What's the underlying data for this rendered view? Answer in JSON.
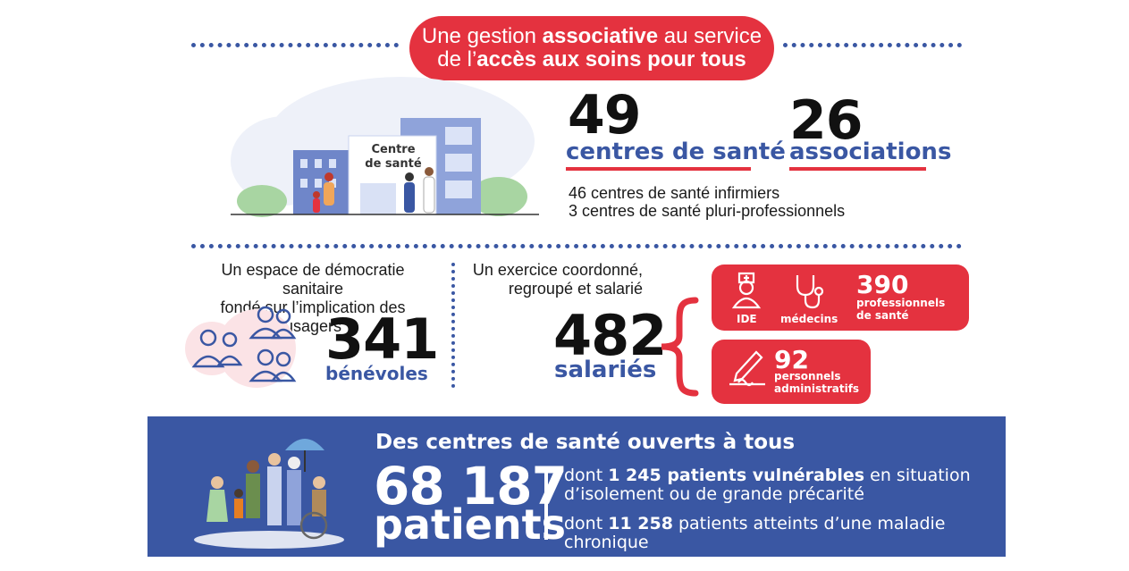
{
  "title": {
    "part1": "Une gestion ",
    "part1_bold": "associative",
    "part2": " au service",
    "part3": "de l’",
    "part3_bold": "accès aux soins pour tous"
  },
  "illustration": {
    "building_sign_line1": "Centre",
    "building_sign_line2": "de santé"
  },
  "centres": {
    "count": "49",
    "label": "centres de santé",
    "detail1": "46 centres de santé infirmiers",
    "detail2": "3 centres de santé pluri-professionnels"
  },
  "associations": {
    "count": "26",
    "label": "associations"
  },
  "democratie": {
    "heading_line1": "Un espace de démocratie sanitaire",
    "heading_line2": "fondé sur l’implication des usagers",
    "count": "341",
    "label": "bénévoles"
  },
  "exercice": {
    "heading_line1": "Un exercice coordonné,",
    "heading_line2": "regroupé et salarié",
    "count": "482",
    "label": "salariés"
  },
  "pros": {
    "ide_label": "IDE",
    "medecins_label": "médecins",
    "count": "390",
    "sub_line1": "professionnels",
    "sub_line2": "de santé"
  },
  "admin": {
    "count": "92",
    "sub_line1": "personnels",
    "sub_line2": "administratifs"
  },
  "patients": {
    "title": "Des centres de santé ouverts à tous",
    "count": "68 187",
    "unit": "patients",
    "line1_pre": "dont ",
    "line1_bold": "1 245 patients vulnérables",
    "line1_post": " en situation",
    "line2": "d’isolement ou de grande précarité",
    "line3_pre": "dont ",
    "line3_bold": "11 258",
    "line3_post": " patients atteints d’une maladie chronique"
  },
  "colors": {
    "red": "#e4323f",
    "blue": "#3a57a3",
    "text": "#1a1a1a"
  }
}
